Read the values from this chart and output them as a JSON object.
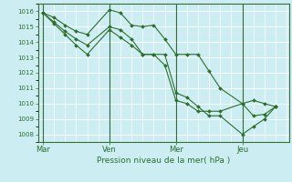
{
  "title": "",
  "xlabel": "Pression niveau de la mer( hPa )",
  "ylabel": "",
  "bg_color": "#cceef2",
  "grid_major_color": "#aadddd",
  "grid_minor_color": "#ddeef0",
  "line_color": "#2d6e2d",
  "ylim": [
    1007.5,
    1016.5
  ],
  "yticks": [
    1008,
    1009,
    1010,
    1011,
    1012,
    1013,
    1014,
    1015,
    1016
  ],
  "day_labels": [
    "Mar",
    "Ven",
    "Mer",
    "Jeu"
  ],
  "day_positions": [
    0.0,
    0.27,
    0.54,
    0.81
  ],
  "line1_x": [
    0.0,
    0.045,
    0.09,
    0.135,
    0.18,
    0.27,
    0.315,
    0.36,
    0.405,
    0.45,
    0.495,
    0.54,
    0.585,
    0.63,
    0.675,
    0.72,
    0.81,
    0.855,
    0.9,
    0.945
  ],
  "line1_y": [
    1015.9,
    1015.6,
    1015.1,
    1014.7,
    1014.5,
    1016.1,
    1015.9,
    1015.1,
    1015.0,
    1015.1,
    1014.2,
    1013.2,
    1013.2,
    1013.2,
    1012.1,
    1011.0,
    1010.0,
    1009.2,
    1009.3,
    1009.8
  ],
  "line2_x": [
    0.0,
    0.045,
    0.09,
    0.135,
    0.18,
    0.27,
    0.315,
    0.36,
    0.405,
    0.45,
    0.495,
    0.54,
    0.585,
    0.63,
    0.675,
    0.72,
    0.81,
    0.855,
    0.9,
    0.945
  ],
  "line2_y": [
    1015.9,
    1015.3,
    1014.7,
    1014.2,
    1013.8,
    1015.0,
    1014.8,
    1014.2,
    1013.2,
    1013.2,
    1013.2,
    1010.7,
    1010.4,
    1009.8,
    1009.2,
    1009.2,
    1008.0,
    1008.5,
    1009.0,
    1009.8
  ],
  "line3_x": [
    0.0,
    0.045,
    0.09,
    0.135,
    0.18,
    0.27,
    0.315,
    0.36,
    0.405,
    0.45,
    0.495,
    0.54,
    0.585,
    0.63,
    0.675,
    0.72,
    0.81,
    0.855,
    0.9,
    0.945
  ],
  "line3_y": [
    1015.9,
    1015.2,
    1014.5,
    1013.8,
    1013.2,
    1014.8,
    1014.3,
    1013.8,
    1013.2,
    1013.2,
    1012.5,
    1010.2,
    1010.0,
    1009.5,
    1009.5,
    1009.5,
    1010.0,
    1010.2,
    1010.0,
    1009.8
  ]
}
